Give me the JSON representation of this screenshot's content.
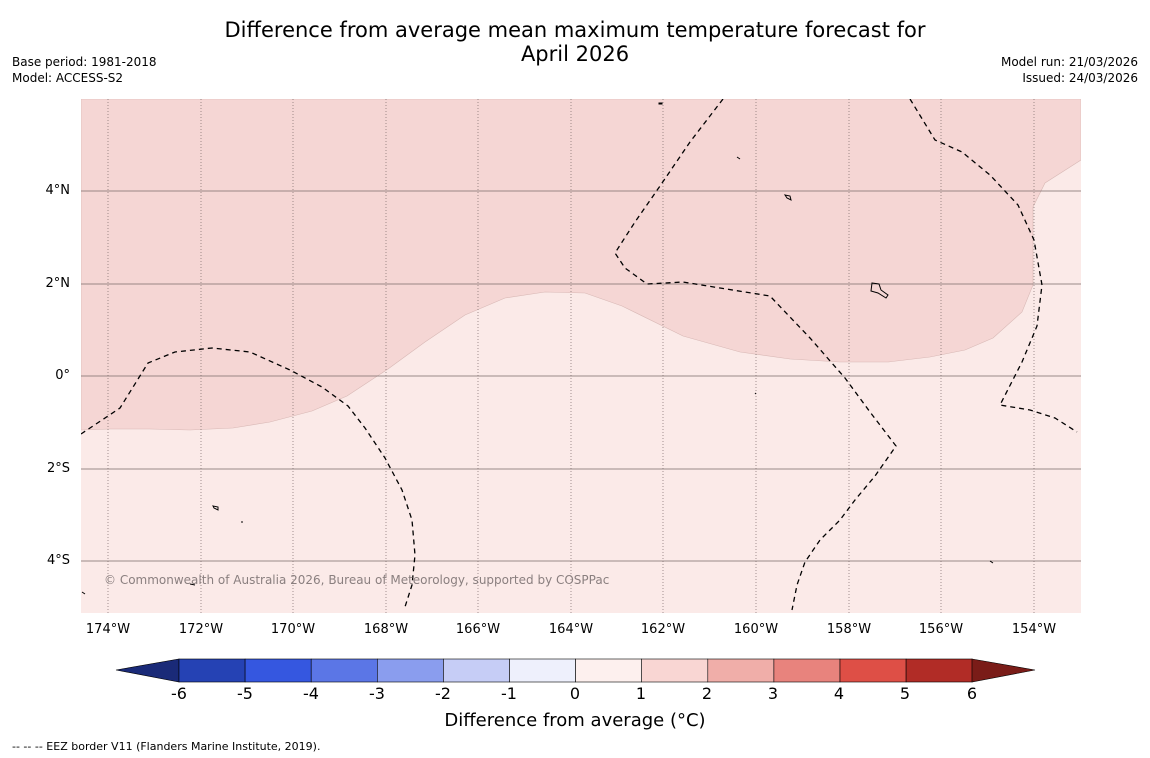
{
  "title": {
    "line1": "Difference from average mean maximum temperature forecast for",
    "line2": "April 2026"
  },
  "meta": {
    "base_period": "Base period: 1981-2018",
    "model": "Model: ACCESS-S2",
    "model_run": "Model run: 21/03/2026",
    "issued": "Issued: 24/03/2026"
  },
  "map": {
    "latitude_labels": [
      "4°N",
      "2°N",
      "0°",
      "2°S",
      "4°S"
    ],
    "longitude_labels": [
      "174°W",
      "172°W",
      "170°W",
      "168°W",
      "166°W",
      "164°W",
      "162°W",
      "160°W",
      "158°W",
      "156°W",
      "154°W"
    ],
    "lon_range": [
      -174.6,
      -153.0
    ],
    "lat_range": [
      -5.2,
      5.9
    ],
    "copyright": "© Commonwealth of Australia 2026, Bureau of Meteorology, supported by COSPPac",
    "colors": {
      "band_1_2": "#f5d6d4",
      "band_0_1": "#fbeae8",
      "grid": "#7a6a6a"
    }
  },
  "colorbar": {
    "ticks": [
      "-6",
      "-5",
      "-4",
      "-3",
      "-2",
      "-1",
      "0",
      "1",
      "2",
      "3",
      "4",
      "5",
      "6"
    ],
    "colors": [
      "#1a2a78",
      "#2542b4",
      "#3557e0",
      "#5b76e6",
      "#8a9dee",
      "#c6cdf6",
      "#eef0fc",
      "#fdf0ee",
      "#f9d6d3",
      "#f0aea9",
      "#e8837d",
      "#de4f46",
      "#b12c26",
      "#7a1c18"
    ],
    "label": "Difference from average (°C)"
  },
  "footnote": "--  --  -- EEZ border V11 (Flanders Marine Institute, 2019)."
}
